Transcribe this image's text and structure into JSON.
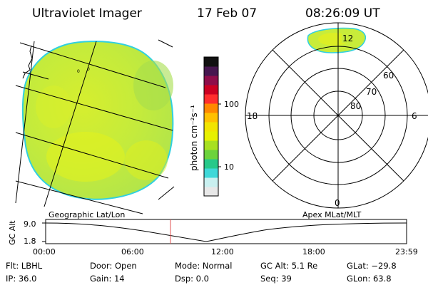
{
  "header": {
    "instrument": "Ultraviolet Imager",
    "date": "17 Feb 07",
    "time": "08:26:09 UT"
  },
  "colorbar": {
    "unit_label": "photon cm⁻²s⁻¹",
    "ticks": [
      "100",
      "10"
    ],
    "colors": [
      "#e8e8e8",
      "#c9f0f0",
      "#3fd8d8",
      "#27c98a",
      "#6cd33c",
      "#a8e020",
      "#e7f000",
      "#f2e400",
      "#ffc000",
      "#ff8800",
      "#ff2e2e",
      "#cc0022",
      "#8e0d4a",
      "#46164f",
      "#111111"
    ]
  },
  "image_map": {
    "data_colors": {
      "main": "#c8ec3a",
      "bright": "#eef000",
      "dim": "#a7df4a",
      "rim": "#30d0e0"
    },
    "grid_labels": [
      "0",
      "0"
    ]
  },
  "polar_plot": {
    "mlt_labels": {
      "top": "12",
      "left": "18",
      "right": "6",
      "bottom": "0"
    },
    "mlat_labels": [
      "60",
      "70",
      "80"
    ]
  },
  "timeline": {
    "ylabel": "GC Alt",
    "y_ticks": [
      "9.0",
      "1.8"
    ],
    "left_caption": "Geographic Lat/Lon",
    "right_caption": "Apex MLat/MLT",
    "x_ticks": [
      "00:00",
      "06:00",
      "12:00",
      "18:00",
      "23:59"
    ],
    "marker_color": "#e05050"
  },
  "info": {
    "flt": "Flt: LBHL",
    "ip": "IP: 36.0",
    "door": "Door: Open",
    "gain": "Gain: 14",
    "mode": "Mode: Normal",
    "dsp": "Dsp:      0.0",
    "gc_alt": "GC Alt: 5.1 Re",
    "seq": "Seq: 39",
    "glat": "GLat: −29.8",
    "glon": "GLon:  63.8"
  }
}
